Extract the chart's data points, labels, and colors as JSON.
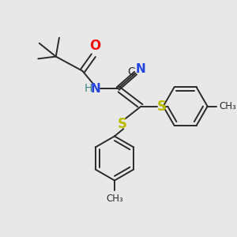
{
  "background_color": "#e8e8e8",
  "bond_color": "#2a2a2a",
  "O_color": "#ee1111",
  "N_color": "#2244dd",
  "S_color": "#bbbb00",
  "C_color": "#2a2a2a",
  "H_color": "#448888",
  "figsize": [
    3.0,
    3.0
  ],
  "dpi": 100,
  "xlim": [
    0,
    10
  ],
  "ylim": [
    0,
    10
  ]
}
